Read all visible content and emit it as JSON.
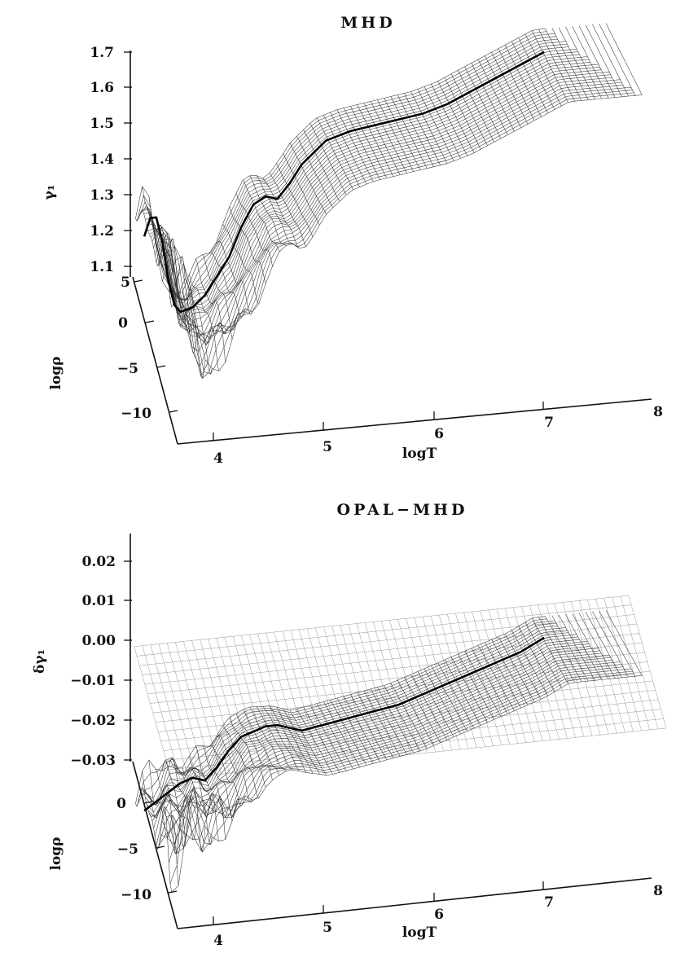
{
  "chart_data": [
    {
      "type": "surface",
      "title": "MHD",
      "zlabel": "γ₁",
      "xlabel": "logT",
      "ylabel": "logρ",
      "x_ticks": [
        "4",
        "5",
        "6",
        "7",
        "8"
      ],
      "y_ticks": [
        "5",
        "0",
        "−5",
        "−10"
      ],
      "z_ticks": [
        "1.1",
        "1.2",
        "1.3",
        "1.4",
        "1.5",
        "1.6",
        "1.7"
      ],
      "xlim": [
        3.7,
        8
      ],
      "ylim": [
        -12,
        5
      ],
      "zlim": [
        1.05,
        1.72
      ],
      "highlighted_curve": {
        "logT": [
          3.7,
          3.75,
          3.8,
          3.85,
          3.9,
          3.95,
          4.0,
          4.1,
          4.2,
          4.3,
          4.4,
          4.5,
          4.6,
          4.7,
          4.8,
          4.9,
          5.0,
          5.2,
          5.4,
          5.6,
          5.8,
          6.0,
          6.2,
          6.4,
          6.6,
          6.8,
          7.0
        ],
        "gamma1": [
          1.3,
          1.35,
          1.35,
          1.28,
          1.17,
          1.1,
          1.08,
          1.09,
          1.12,
          1.17,
          1.22,
          1.3,
          1.36,
          1.38,
          1.37,
          1.41,
          1.46,
          1.52,
          1.54,
          1.55,
          1.56,
          1.57,
          1.59,
          1.62,
          1.65,
          1.68,
          1.71
        ]
      }
    },
    {
      "type": "surface",
      "title": "OPAL−MHD",
      "zlabel": "δγ₁",
      "xlabel": "logT",
      "ylabel": "logρ",
      "x_ticks": [
        "4",
        "5",
        "6",
        "7",
        "8"
      ],
      "y_ticks": [
        "0",
        "−5",
        "−10"
      ],
      "z_ticks": [
        "−0.03",
        "−0.02",
        "−0.01",
        "0.00",
        "0.01",
        "0.02"
      ],
      "xlim": [
        3.7,
        8
      ],
      "ylim": [
        -12,
        5
      ],
      "zlim": [
        -0.03,
        0.025
      ],
      "highlighted_curve": {
        "logT": [
          3.7,
          3.8,
          3.9,
          4.0,
          4.1,
          4.2,
          4.3,
          4.4,
          4.5,
          4.6,
          4.7,
          4.8,
          4.9,
          5.0,
          5.2,
          5.4,
          5.6,
          5.8,
          6.0,
          6.2,
          6.4,
          6.6,
          6.8,
          7.0
        ],
        "dgamma1": [
          -0.03,
          -0.028,
          -0.026,
          -0.024,
          -0.023,
          -0.024,
          -0.021,
          -0.017,
          -0.014,
          -0.013,
          -0.012,
          -0.012,
          -0.013,
          -0.014,
          -0.013,
          -0.012,
          -0.011,
          -0.01,
          -0.008,
          -0.006,
          -0.004,
          -0.002,
          0.0,
          0.003
        ]
      }
    }
  ]
}
